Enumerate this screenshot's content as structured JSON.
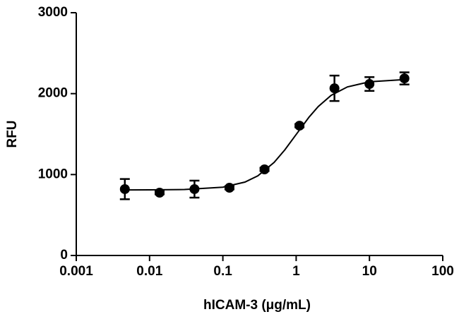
{
  "chart_data": {
    "type": "scatter",
    "x_label": "hICAM-3 (μg/mL)",
    "y_label": "RFU",
    "x_log": true,
    "xlim": [
      0.001,
      100
    ],
    "xticks": [
      0.001,
      0.01,
      0.1,
      1,
      10,
      100
    ],
    "ylim": [
      0,
      3000
    ],
    "yticks": [
      0,
      1000,
      2000,
      3000
    ],
    "series": [
      {
        "color": "#000000",
        "x": [
          0.0046,
          0.0137,
          0.041,
          0.123,
          0.37,
          1.11,
          3.33,
          10,
          30
        ],
        "values": [
          820,
          776,
          820,
          837,
          1064,
          1604,
          2066,
          2119,
          2188
        ],
        "errors": [
          125,
          20,
          105,
          20,
          20,
          20,
          157,
          85,
          75
        ]
      }
    ],
    "curve": {
      "color": "#000000",
      "x": [
        0.0046,
        0.01,
        0.03,
        0.1,
        0.2,
        0.3,
        0.5,
        0.7,
        1,
        1.5,
        2,
        3,
        5,
        10,
        30
      ],
      "values": [
        810,
        811,
        815,
        844,
        907,
        984,
        1150,
        1305,
        1495,
        1710,
        1840,
        1979,
        2083,
        2146,
        2174
      ]
    }
  }
}
